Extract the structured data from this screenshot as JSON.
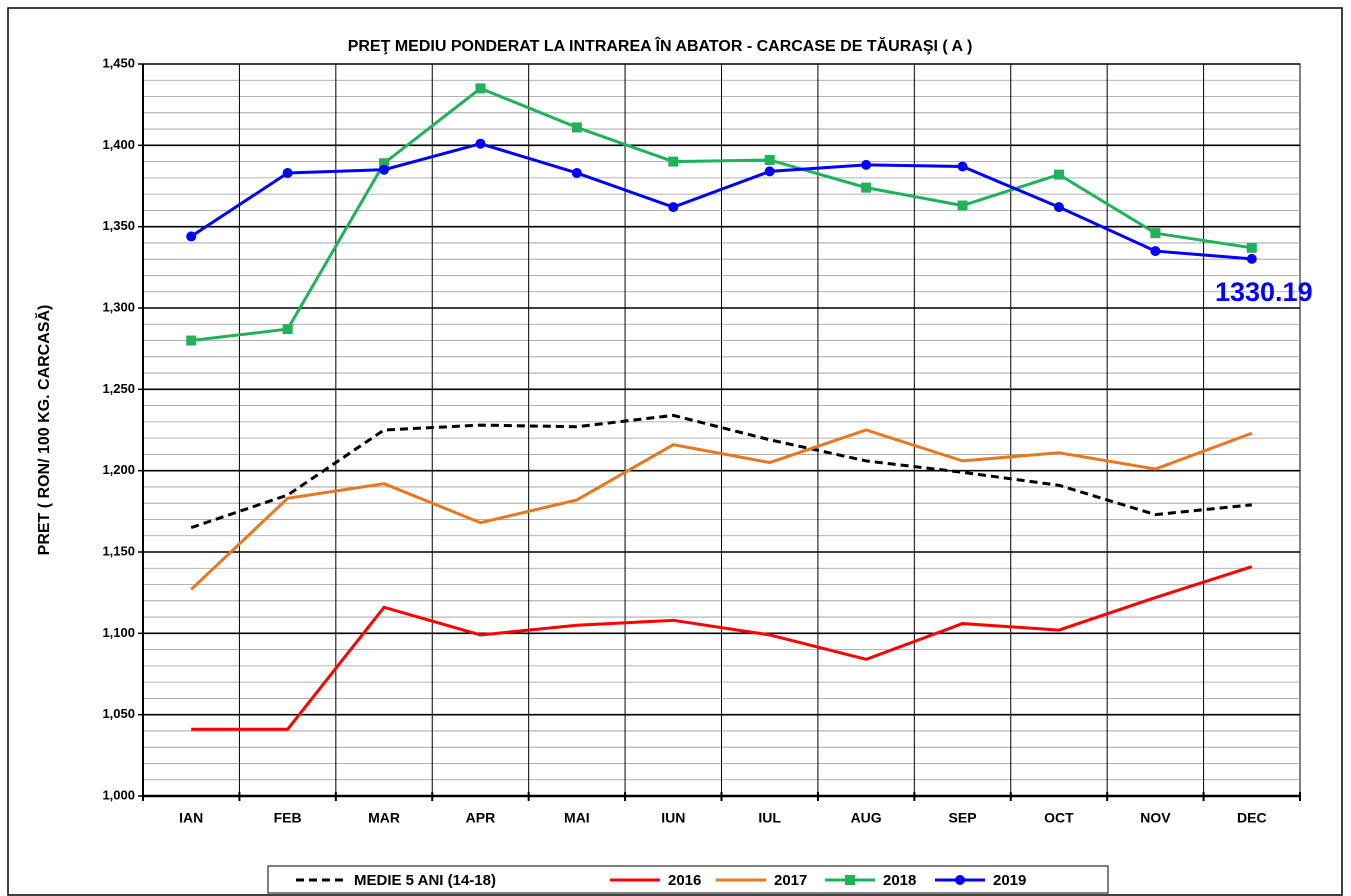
{
  "chart_data": {
    "type": "line",
    "title": "PREŢ MEDIU PONDERAT LA INTRAREA ÎN ABATOR - CARCASE DE TĂURAŞI ( A )",
    "y_label": "PRET ( RON/ 100 KG. CARCASĂ)",
    "categories": [
      "IAN",
      "FEB",
      "MAR",
      "APR",
      "MAI",
      "IUN",
      "IUL",
      "AUG",
      "SEP",
      "OCT",
      "NOV",
      "DEC"
    ],
    "series": [
      {
        "name": "MEDIE 5 ANI (14-18)",
        "color": "#000000",
        "dash": true,
        "values": [
          1165,
          1185,
          1225,
          1228,
          1227,
          1234,
          1219,
          1206,
          1199,
          1191,
          1173,
          1179
        ]
      },
      {
        "name": "2016",
        "color": "#ff0000",
        "values": [
          1041,
          1041,
          1116,
          1099,
          1105,
          1108,
          1099,
          1084,
          1106,
          1102,
          1122,
          1141
        ]
      },
      {
        "name": "2017",
        "color": "#e87722",
        "values": [
          1127,
          1183,
          1192,
          1168,
          1182,
          1216,
          1205,
          1225,
          1206,
          1211,
          1201,
          1223
        ]
      },
      {
        "name": "2018",
        "color": "#1fb25a",
        "marker": "square",
        "values": [
          1280,
          1287,
          1389,
          1435,
          1411,
          1390,
          1391,
          1374,
          1363,
          1382,
          1346,
          1337
        ]
      },
      {
        "name": "2019",
        "color": "#0000ff",
        "marker": "circle",
        "values": [
          1344,
          1383,
          1385,
          1401,
          1383,
          1362,
          1384,
          1388,
          1387,
          1362,
          1335,
          1330.19
        ]
      }
    ],
    "ylim": [
      1000,
      1450
    ],
    "yticks": [
      {
        "value": 1000,
        "label": "1,000"
      },
      {
        "value": 1050,
        "label": "1,050"
      },
      {
        "value": 1100,
        "label": "1,100"
      },
      {
        "value": 1150,
        "label": "1,150"
      },
      {
        "value": 1200,
        "label": "1,200"
      },
      {
        "value": 1250,
        "label": "1,250"
      },
      {
        "value": 1300,
        "label": "1,300"
      },
      {
        "value": 1350,
        "label": "1,350"
      },
      {
        "value": 1400,
        "label": "1,400"
      },
      {
        "value": 1450,
        "label": "1,450"
      }
    ],
    "grid": true,
    "minor_grid": true,
    "legend": "bottom"
  }
}
